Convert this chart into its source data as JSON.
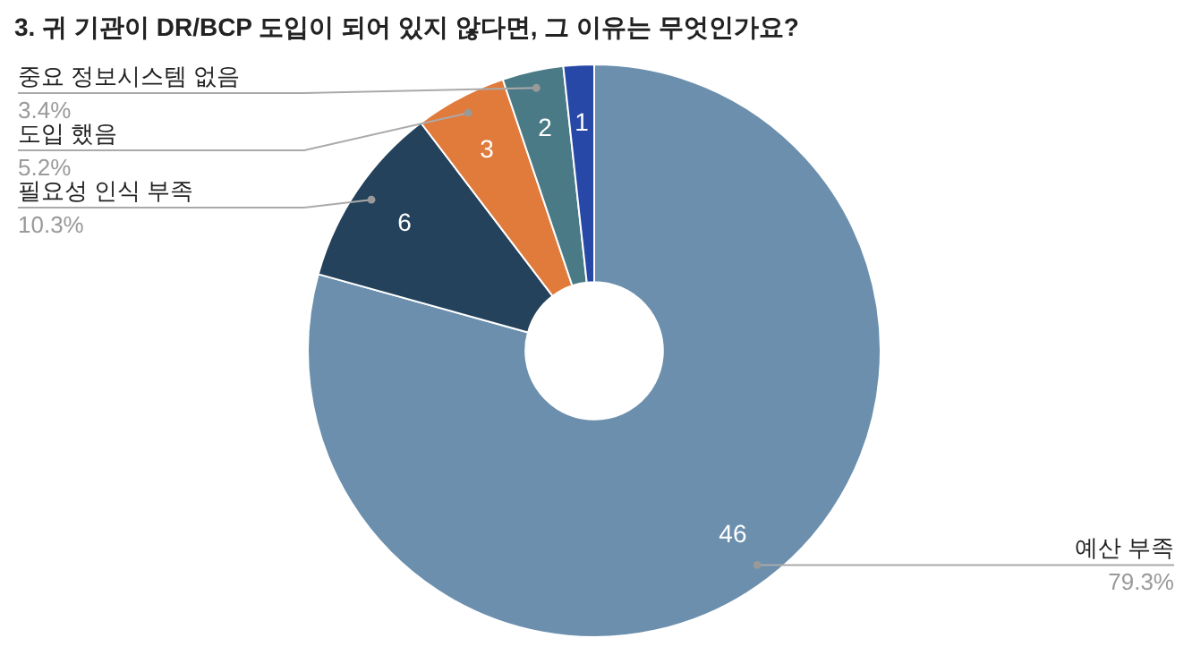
{
  "chart_data": {
    "type": "donut",
    "title": "3. 귀 기관이 DR/BCP 도입이 되어 있지 않다면, 그 이유는 무엇인가요?",
    "categories": [
      "예산 부족",
      "필요성 인식 부족",
      "도입 했음",
      "중요 정보시스템 없음",
      null
    ],
    "values": [
      46,
      6,
      3,
      2,
      1
    ],
    "colors": [
      "#6b8fad",
      "#24425c",
      "#e07b3c",
      "#4a7a86",
      "#2748a6"
    ],
    "value_labels": [
      "46",
      "6",
      "3",
      "2",
      "1"
    ],
    "annotations": [
      "79.3%",
      "10.3%",
      "5.2%",
      "3.4%"
    ]
  }
}
